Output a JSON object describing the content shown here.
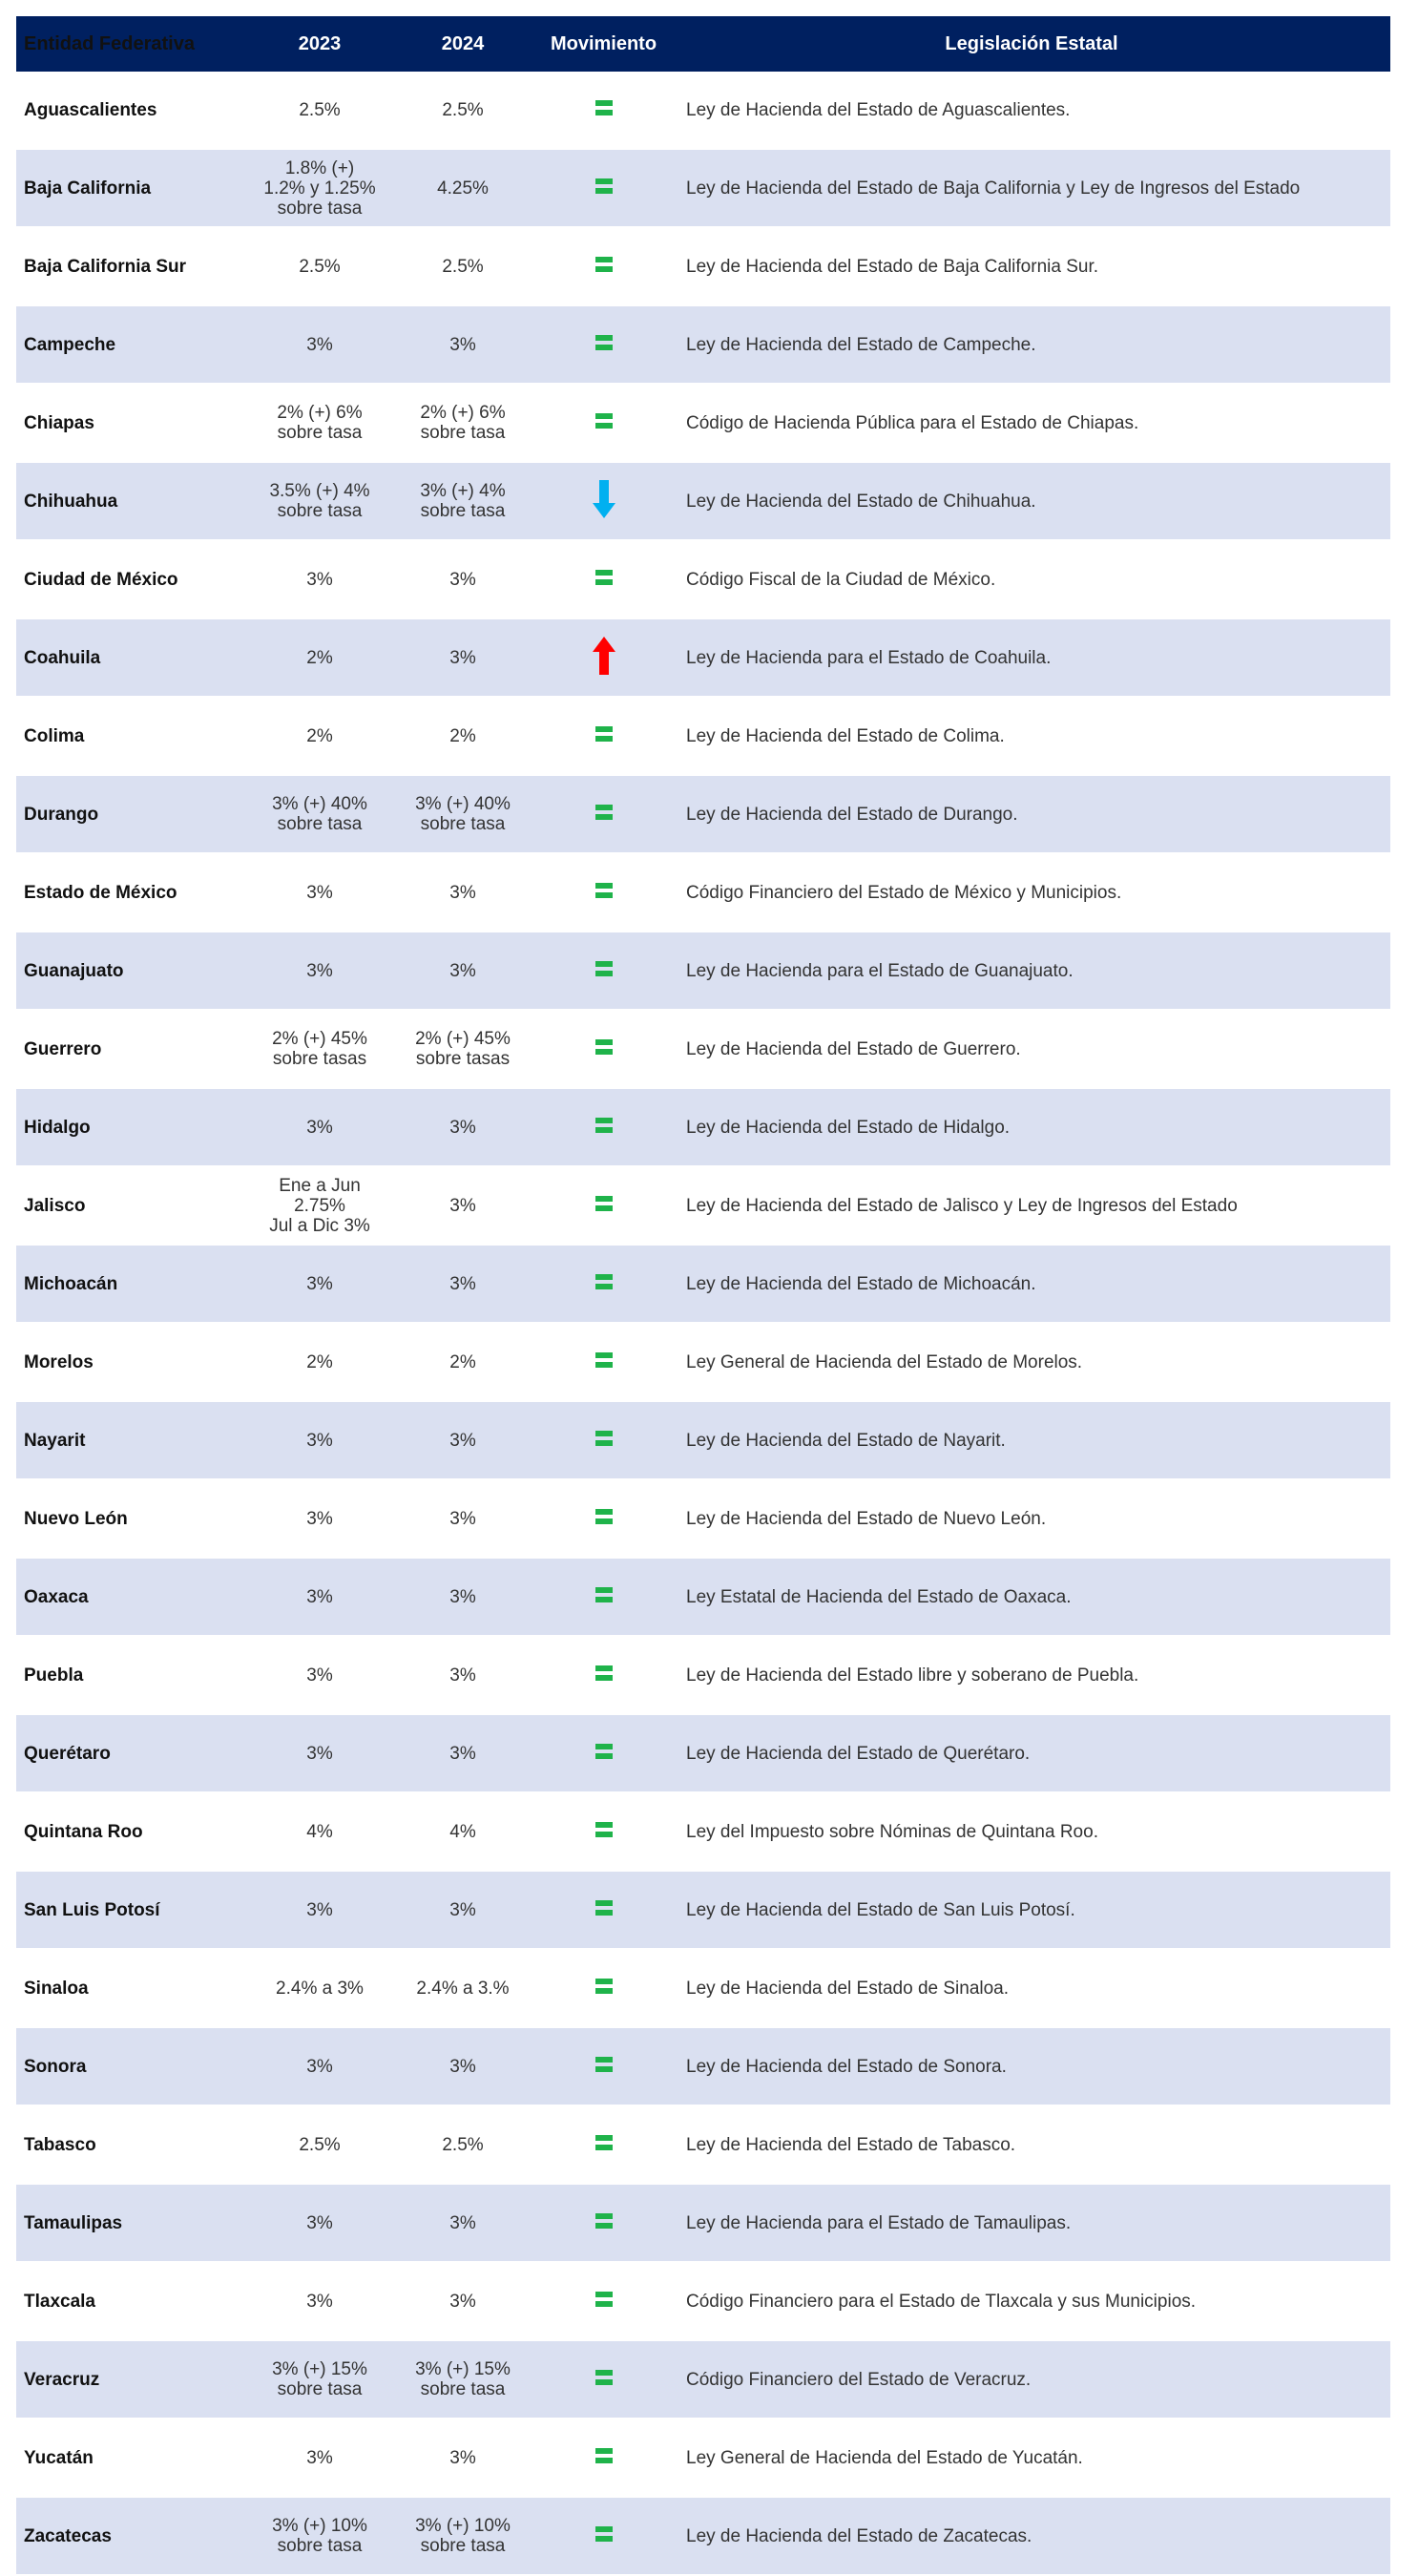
{
  "header": {
    "entity": "Entidad Federativa",
    "y2023": "2023",
    "y2024": "2024",
    "movement": "Movimiento",
    "legislation": "Legislación Estatal"
  },
  "colors": {
    "header_bg": "#002060",
    "stripe": "#dae0f1",
    "equal": "#1fb34a",
    "down": "#00b0f0",
    "up": "#ff0000"
  },
  "rows": [
    {
      "entity": "Aguascalientes",
      "y2023": "2.5%",
      "y2024": "2.5%",
      "movement": "equal",
      "legislation": "Ley de Hacienda del Estado de Aguascalientes."
    },
    {
      "entity": "Baja California",
      "y2023": "1.8% (+)\n1.2% y 1.25%\nsobre tasa",
      "y2024": "4.25%",
      "movement": "equal",
      "legislation": "Ley de Hacienda del Estado de Baja California  y Ley de Ingresos del Estado"
    },
    {
      "entity": "Baja California Sur",
      "y2023": "2.5%",
      "y2024": "2.5%",
      "movement": "equal",
      "legislation": "Ley de Hacienda del Estado de Baja California Sur."
    },
    {
      "entity": "Campeche",
      "y2023": "3%",
      "y2024": "3%",
      "movement": "equal",
      "legislation": "Ley de Hacienda del Estado de Campeche."
    },
    {
      "entity": "Chiapas",
      "y2023": "2% (+) 6%\nsobre tasa",
      "y2024": "2% (+) 6%\nsobre tasa",
      "movement": "equal",
      "legislation": "Código de Hacienda Pública para el Estado de Chiapas."
    },
    {
      "entity": "Chihuahua",
      "y2023": "3.5% (+) 4%\nsobre tasa",
      "y2024": "3% (+) 4%\nsobre tasa",
      "movement": "down",
      "legislation": "Ley de Hacienda del Estado de Chihuahua."
    },
    {
      "entity": "Ciudad de México",
      "y2023": "3%",
      "y2024": "3%",
      "movement": "equal",
      "legislation": "Código Fiscal de la Ciudad de México."
    },
    {
      "entity": "Coahuila",
      "y2023": "2%",
      "y2024": "3%",
      "movement": "up",
      "legislation": "Ley de Hacienda para el Estado de Coahuila."
    },
    {
      "entity": "Colima",
      "y2023": "2%",
      "y2024": "2%",
      "movement": "equal",
      "legislation": "Ley de Hacienda del Estado de Colima."
    },
    {
      "entity": "Durango",
      "y2023": "3% (+) 40%\nsobre tasa",
      "y2024": "3% (+) 40%\nsobre tasa",
      "movement": "equal",
      "legislation": "Ley de Hacienda del Estado de Durango."
    },
    {
      "entity": "Estado de México",
      "y2023": "3%",
      "y2024": "3%",
      "movement": "equal",
      "legislation": "Código Financiero del Estado de México y Municipios."
    },
    {
      "entity": "Guanajuato",
      "y2023": "3%",
      "y2024": "3%",
      "movement": "equal",
      "legislation": "Ley de Hacienda para el Estado de Guanajuato."
    },
    {
      "entity": "Guerrero",
      "y2023": "2% (+) 45%\nsobre tasas",
      "y2024": "2% (+) 45%\nsobre tasas",
      "movement": "equal",
      "legislation": "Ley de Hacienda del Estado de Guerrero."
    },
    {
      "entity": "Hidalgo",
      "y2023": "3%",
      "y2024": "3%",
      "movement": "equal",
      "legislation": "Ley de Hacienda del Estado de Hidalgo."
    },
    {
      "entity": "Jalisco",
      "y2023": "Ene a Jun\n2.75%\nJul a Dic 3%",
      "y2024": "3%",
      "movement": "equal",
      "legislation": "Ley de Hacienda del Estado de Jalisco y Ley de Ingresos del Estado"
    },
    {
      "entity": "Michoacán",
      "y2023": "3%",
      "y2024": "3%",
      "movement": "equal",
      "legislation": "Ley de Hacienda del Estado de Michoacán."
    },
    {
      "entity": "Morelos",
      "y2023": "2%",
      "y2024": "2%",
      "movement": "equal",
      "legislation": "Ley General de Hacienda del Estado de Morelos."
    },
    {
      "entity": "Nayarit",
      "y2023": "3%",
      "y2024": "3%",
      "movement": "equal",
      "legislation": "Ley de Hacienda del Estado de Nayarit."
    },
    {
      "entity": "Nuevo León",
      "y2023": "3%",
      "y2024": "3%",
      "movement": "equal",
      "legislation": "Ley de Hacienda del Estado de Nuevo León."
    },
    {
      "entity": "Oaxaca",
      "y2023": "3%",
      "y2024": "3%",
      "movement": "equal",
      "legislation": "Ley Estatal de Hacienda del Estado de Oaxaca."
    },
    {
      "entity": "Puebla",
      "y2023": "3%",
      "y2024": "3%",
      "movement": "equal",
      "legislation": "Ley de Hacienda del Estado libre y soberano de Puebla."
    },
    {
      "entity": "Querétaro",
      "y2023": "3%",
      "y2024": "3%",
      "movement": "equal",
      "legislation": "Ley de Hacienda del Estado de Querétaro."
    },
    {
      "entity": "Quintana Roo",
      "y2023": "4%",
      "y2024": "4%",
      "movement": "equal",
      "legislation": "Ley del Impuesto sobre Nóminas de Quintana Roo."
    },
    {
      "entity": "San Luis Potosí",
      "y2023": "3%",
      "y2024": "3%",
      "movement": "equal",
      "legislation": "Ley de Hacienda del Estado de San Luis Potosí."
    },
    {
      "entity": "Sinaloa",
      "y2023": "2.4% a 3%",
      "y2024": "2.4% a 3.%",
      "movement": "equal",
      "legislation": "Ley de Hacienda del Estado de Sinaloa."
    },
    {
      "entity": "Sonora",
      "y2023": "3%",
      "y2024": "3%",
      "movement": "equal",
      "legislation": "Ley de Hacienda del Estado de Sonora."
    },
    {
      "entity": "Tabasco",
      "y2023": "2.5%",
      "y2024": "2.5%",
      "movement": "equal",
      "legislation": "Ley de Hacienda del Estado de Tabasco."
    },
    {
      "entity": "Tamaulipas",
      "y2023": "3%",
      "y2024": "3%",
      "movement": "equal",
      "legislation": "Ley de Hacienda para el Estado de Tamaulipas."
    },
    {
      "entity": "Tlaxcala",
      "y2023": "3%",
      "y2024": "3%",
      "movement": "equal",
      "legislation": "Código Financiero para el Estado de Tlaxcala y sus Municipios."
    },
    {
      "entity": "Veracruz",
      "y2023": "3%  (+) 15%\nsobre tasa",
      "y2024": "3%  (+) 15%\nsobre tasa",
      "movement": "equal",
      "legislation": "Código Financiero del Estado de Veracruz."
    },
    {
      "entity": "Yucatán",
      "y2023": "3%",
      "y2024": "3%",
      "movement": "equal",
      "legislation": "Ley General de Hacienda del Estado de Yucatán."
    },
    {
      "entity": "Zacatecas",
      "y2023": "3% (+) 10%\nsobre tasa",
      "y2024": "3% (+) 10%\nsobre tasa",
      "movement": "equal",
      "legislation": "Ley de Hacienda del Estado de Zacatecas."
    }
  ]
}
